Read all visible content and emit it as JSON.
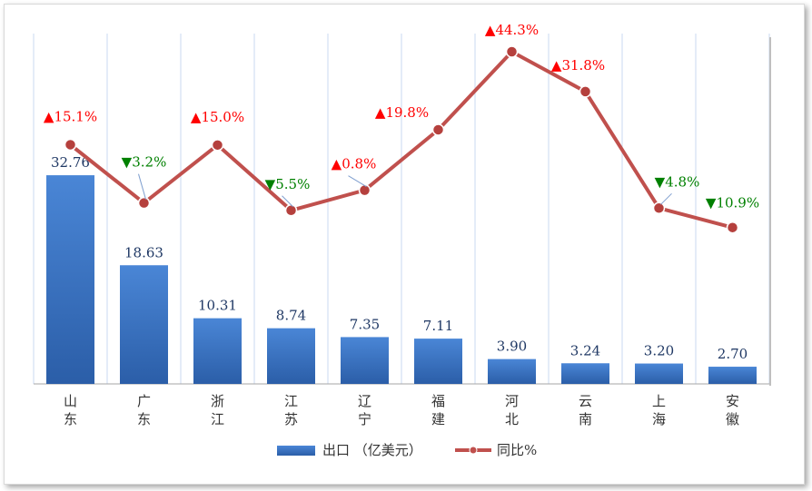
{
  "chart_data": {
    "type": "bar+line",
    "categories": [
      [
        "山",
        "东"
      ],
      [
        "广",
        "东"
      ],
      [
        "浙",
        "江"
      ],
      [
        "江",
        "苏"
      ],
      [
        "辽",
        "宁"
      ],
      [
        "福",
        "建"
      ],
      [
        "河",
        "北"
      ],
      [
        "云",
        "南"
      ],
      [
        "上",
        "海"
      ],
      [
        "安",
        "徽"
      ]
    ],
    "series": [
      {
        "name": "出口 （亿美元）",
        "kind": "bar",
        "color": "#3a70c0",
        "values": [
          32.76,
          18.63,
          10.31,
          8.74,
          7.35,
          7.11,
          3.9,
          3.24,
          3.2,
          2.7
        ],
        "labels": [
          "32.76",
          "18.63",
          "10.31",
          "8.74",
          "7.35",
          "7.11",
          "3.90",
          "3.24",
          "3.20",
          "2.70"
        ]
      },
      {
        "name": "同比%",
        "kind": "line",
        "color": "#c0504d",
        "values": [
          15.1,
          -3.2,
          15.0,
          -5.5,
          0.8,
          19.8,
          44.3,
          31.8,
          -4.8,
          -10.9
        ],
        "labels": [
          "15.1%",
          "3.2%",
          "15.0%",
          "5.5%",
          "0.8%",
          "19.8%",
          "44.3%",
          "31.8%",
          "4.8%",
          "10.9%"
        ]
      }
    ],
    "up_color": "#ff0000",
    "down_color": "#008000",
    "up_symbol": "▲",
    "down_symbol": "▼",
    "bar_ylim": [
      0,
      55
    ],
    "line_ylim": [
      -60,
      50
    ],
    "grid": "vertical",
    "legend_position": "bottom"
  }
}
